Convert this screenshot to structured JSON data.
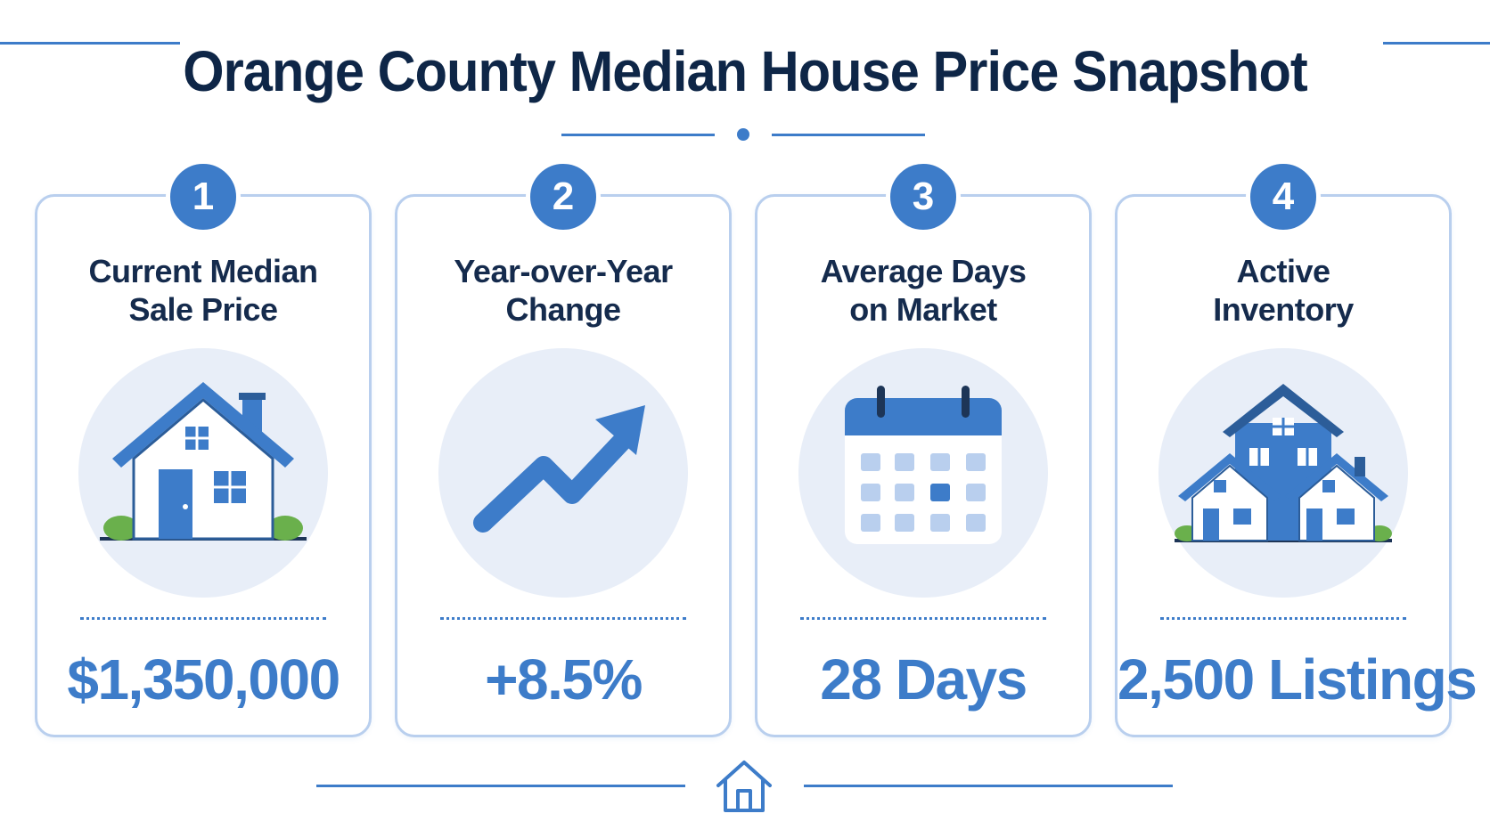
{
  "title": "Orange County Median House Price Snapshot",
  "colors": {
    "accent": "#3d7cc9",
    "title": "#0e2647",
    "card_border": "#b9cfee",
    "icon_bg": "#e8eef8",
    "shrub": "#6ab04c"
  },
  "cards": [
    {
      "number": "1",
      "title": "Current Median\nSale Price",
      "value": "$1,350,000",
      "icon": "house-icon"
    },
    {
      "number": "2",
      "title": "Year-over-Year\nChange",
      "value": "+8.5%",
      "icon": "trend-up-arrow-icon"
    },
    {
      "number": "3",
      "title": "Average Days\non Market",
      "value": "28 Days",
      "icon": "calendar-icon"
    },
    {
      "number": "4",
      "title": "Active\nInventory",
      "value": "2,500 Listings",
      "icon": "houses-icon"
    }
  ],
  "footer": {
    "icon": "home-outline-icon"
  }
}
